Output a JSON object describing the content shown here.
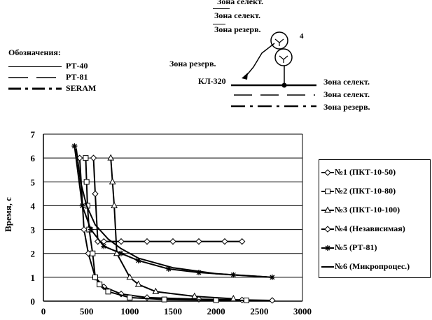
{
  "top_legend": {
    "heading": "Обозначения:",
    "items": [
      {
        "label": "РТ-40",
        "style": "solid"
      },
      {
        "label": "РТ-81",
        "style": "dashed"
      },
      {
        "label": "SERAM",
        "style": "dashdot"
      }
    ]
  },
  "schematic": {
    "top_zones": [
      "Зона селект.",
      "Зона селект.",
      "Зона резерв."
    ],
    "mid_label": "Зона резерв.",
    "feeder_label": "КЛ-320",
    "transformer_number": "4",
    "right_zones": [
      "Зона селект.",
      "Зона селект.",
      "Зона резерв."
    ]
  },
  "colors": {
    "line": "#000000",
    "background": "#ffffff"
  },
  "chart_data": {
    "type": "line",
    "title": "",
    "xlabel": "",
    "ylabel": "Время, с",
    "xlim": [
      0,
      3000
    ],
    "ylim": [
      0,
      7
    ],
    "x_ticks": [
      "0",
      "500",
      "1000",
      "1500",
      "2000",
      "2500",
      "3000"
    ],
    "y_ticks": [
      "0",
      "1",
      "2",
      "3",
      "4",
      "5",
      "6",
      "7"
    ],
    "grid": "horizontal",
    "legend_position": "right",
    "series": [
      {
        "name": "№1 (ПКТ-10-50)",
        "marker": "diamond",
        "x": [
          420,
          470,
          520,
          600,
          700,
          900,
          1200,
          1800,
          2300,
          2650
        ],
        "y": [
          6,
          3,
          2,
          1,
          0.6,
          0.3,
          0.15,
          0.08,
          0.05,
          0.03
        ]
      },
      {
        "name": "№2 (ПКТ-10-80)",
        "marker": "square",
        "x": [
          490,
          500,
          510,
          530,
          570,
          600,
          650,
          750,
          1000,
          1400,
          2000,
          2350
        ],
        "y": [
          6,
          5,
          4,
          3,
          2,
          1,
          0.7,
          0.4,
          0.15,
          0.07,
          0.04,
          0.03
        ]
      },
      {
        "name": "№3 (ПКТ-10-100)",
        "marker": "triangle",
        "x": [
          780,
          800,
          820,
          850,
          1000,
          1100,
          1300,
          1750,
          2200
        ],
        "y": [
          6,
          5,
          4,
          2,
          1,
          0.7,
          0.4,
          0.2,
          0.1
        ]
      },
      {
        "name": "№4 (Независимая)",
        "marker": "diamond",
        "x": [
          580,
          600,
          630,
          700,
          900,
          1200,
          1500,
          1800,
          2100,
          2300
        ],
        "y": [
          6,
          4.5,
          2.5,
          2.5,
          2.5,
          2.5,
          2.5,
          2.5,
          2.5,
          2.5
        ]
      },
      {
        "name": "№5 (РТ-81)",
        "marker": "star",
        "x": [
          360,
          450,
          550,
          700,
          900,
          1100,
          1450,
          1800,
          2200,
          2650
        ],
        "y": [
          6.5,
          4,
          3,
          2.3,
          2,
          1.7,
          1.35,
          1.2,
          1.1,
          1
        ]
      },
      {
        "name": "№6 (Микропроцес.)",
        "marker": "none",
        "x": [
          380,
          430,
          500,
          600,
          750,
          900,
          1100,
          1500,
          2000,
          2650
        ],
        "y": [
          6.4,
          5,
          4,
          3.2,
          2.6,
          2.2,
          1.8,
          1.4,
          1.15,
          1
        ]
      }
    ]
  }
}
